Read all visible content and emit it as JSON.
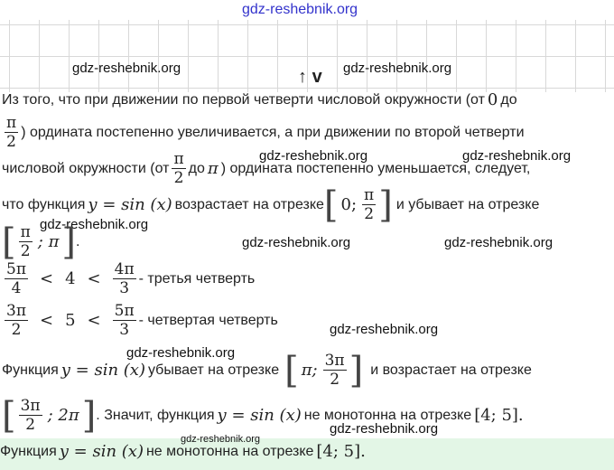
{
  "watermark": "gdz-reshebnik.org",
  "nav": {
    "up": "↑",
    "down": "v"
  },
  "l1": {
    "a": "Из того, что при движении по первой четверти числовой окружности (от",
    "zero": "0",
    "b": "до"
  },
  "l2": {
    "num": "π",
    "den": "2",
    "a": ") ордината постепенно увеличивается, а при движении по второй четверти"
  },
  "l3": {
    "a": "числовой окружности (от",
    "num": "π",
    "den": "2",
    "b": "до",
    "pi": "π",
    "c": ") ордината постепенно уменьшается, следует,"
  },
  "l4": {
    "a": "что функция",
    "f": "y = sin (x)",
    "b": "возрастает на отрезке",
    "lb": "[",
    "i1": "0;",
    "num": "π",
    "den": "2",
    "rb": "]",
    "c": "и убывает на отрезке"
  },
  "l5": {
    "lb": "[",
    "num": "π",
    "den": "2",
    "i2": "; π",
    "rb": "]",
    "end": "."
  },
  "l6": {
    "n1": "5π",
    "d1": "4",
    "lt1": "<",
    "v": "4",
    "lt2": "<",
    "n2": "4π",
    "d2": "3",
    "t": "- третья четверть"
  },
  "l7": {
    "n1": "3π",
    "d1": "2",
    "lt1": "<",
    "v": "5",
    "lt2": "<",
    "n2": "5π",
    "d2": "3",
    "t": "- четвертая четверть"
  },
  "l8": {
    "a": "Функция",
    "f": "y = sin (x)",
    "b": "убывает на отрезке",
    "lb": "[",
    "i1": "π;",
    "num": "3π",
    "den": "2",
    "rb": "]",
    "c": "и возрастает на отрезке"
  },
  "l9": {
    "lb": "[",
    "num": "3π",
    "den": "2",
    "i2": "; 2π",
    "rb": "]",
    "a": ". Значит, функция",
    "f": "y = sin (x)",
    "b": "не монотонна на отрезке",
    "seg": "[4; 5]."
  },
  "answer": {
    "a": "Функция",
    "f": "y = sin (x)",
    "b": "не монотонна на отрезке",
    "seg": "[4; 5]."
  }
}
